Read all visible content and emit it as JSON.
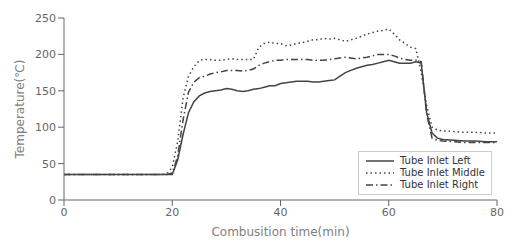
{
  "chart_data": {
    "type": "line",
    "xlabel": "Combusition time(min)",
    "ylabel": "Temperature(℃)",
    "xlim": [
      0,
      80
    ],
    "ylim": [
      0,
      250
    ],
    "xticks": [
      0,
      20,
      40,
      60,
      80
    ],
    "yticks": [
      0,
      50,
      100,
      150,
      200,
      250
    ],
    "grid": false,
    "legend": "lower right",
    "x": [
      0,
      2,
      4,
      6,
      8,
      10,
      12,
      14,
      16,
      18,
      19,
      20,
      21,
      22,
      23,
      24,
      25,
      26,
      27,
      28,
      29,
      30,
      31,
      32,
      33,
      34,
      35,
      36,
      37,
      38,
      39,
      40,
      41,
      42,
      43,
      44,
      45,
      46,
      47,
      48,
      49,
      50,
      51,
      52,
      53,
      54,
      55,
      56,
      57,
      58,
      59,
      60,
      61,
      62,
      63,
      64,
      65,
      66,
      67,
      68,
      69,
      70,
      72,
      74,
      76,
      78,
      80
    ],
    "series": [
      {
        "name": "Tube Inlet Left",
        "color": "#444444",
        "line_style": "solid",
        "values": [
          35,
          35,
          35,
          35,
          35,
          35,
          35,
          35,
          35,
          35,
          35,
          35,
          55,
          90,
          120,
          135,
          143,
          147,
          149,
          150,
          151,
          153,
          152,
          150,
          149,
          150,
          152,
          153,
          155,
          157,
          157,
          160,
          161,
          162,
          163,
          163,
          163,
          162,
          162,
          163,
          164,
          165,
          170,
          175,
          178,
          181,
          183,
          185,
          186,
          188,
          190,
          192,
          190,
          188,
          188,
          188,
          190,
          188,
          120,
          92,
          85,
          83,
          82,
          81,
          81,
          80,
          80
        ]
      },
      {
        "name": "Tube Inlet Middle",
        "color": "#444444",
        "line_style": "dotted",
        "values": [
          35,
          35,
          35,
          35,
          35,
          35,
          35,
          35,
          35,
          35,
          36,
          45,
          80,
          140,
          170,
          183,
          192,
          193,
          193,
          192,
          192,
          193,
          194,
          193,
          193,
          193,
          193,
          210,
          215,
          217,
          215,
          215,
          212,
          213,
          215,
          216,
          218,
          220,
          220,
          222,
          221,
          222,
          220,
          218,
          220,
          222,
          225,
          228,
          230,
          232,
          233,
          235,
          228,
          220,
          215,
          210,
          208,
          175,
          130,
          100,
          96,
          95,
          94,
          93,
          93,
          92,
          92
        ]
      },
      {
        "name": "Tube Inlet Right",
        "color": "#444444",
        "line_style": "dashdot",
        "values": [
          35,
          35,
          35,
          35,
          35,
          35,
          35,
          35,
          35,
          35,
          35,
          37,
          60,
          110,
          148,
          162,
          168,
          170,
          173,
          175,
          176,
          178,
          178,
          178,
          177,
          178,
          180,
          185,
          188,
          190,
          192,
          192,
          193,
          193,
          193,
          193,
          193,
          192,
          192,
          192,
          193,
          194,
          195,
          196,
          195,
          194,
          195,
          196,
          198,
          200,
          200,
          200,
          198,
          195,
          193,
          192,
          192,
          190,
          118,
          85,
          82,
          81,
          80,
          79,
          79,
          79,
          79
        ]
      }
    ]
  }
}
